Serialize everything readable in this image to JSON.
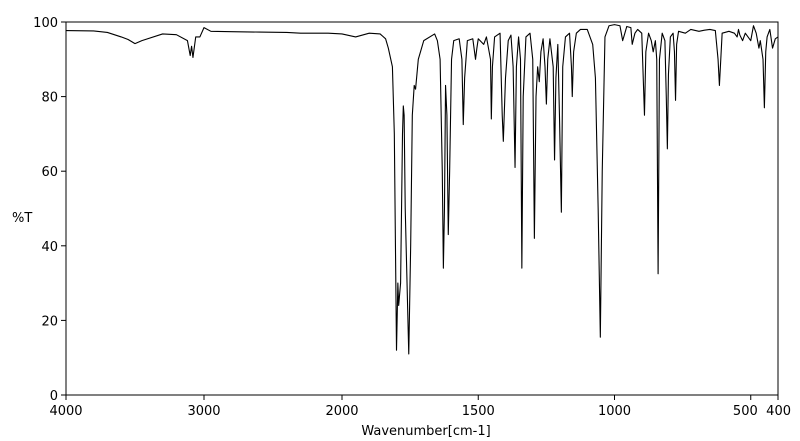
{
  "chart_data": {
    "type": "line",
    "title": "",
    "xlabel": "Wavenumber[cm-1]",
    "ylabel": "%T",
    "xlim": [
      4000,
      400
    ],
    "ylim": [
      0,
      100
    ],
    "x_ticks": [
      4000,
      3000,
      2000,
      1500,
      1000,
      500,
      400
    ],
    "x_tick_labels": [
      "4000",
      "3000",
      "2000",
      "1500",
      "1000",
      "500",
      "400"
    ],
    "y_ticks": [
      0,
      20,
      40,
      60,
      80,
      100
    ],
    "y_tick_labels": [
      "0",
      "20",
      "40",
      "60",
      "80",
      "100"
    ],
    "x_scale": "piecewise-linear (4000-2000 and 2000-400 at different scales)",
    "grid": false,
    "line_color": "#000000",
    "series": [
      {
        "points": [
          [
            4000,
            97.7
          ],
          [
            3800,
            97.6
          ],
          [
            3700,
            97.2
          ],
          [
            3600,
            96.0
          ],
          [
            3550,
            95.3
          ],
          [
            3500,
            94.2
          ],
          [
            3450,
            95.0
          ],
          [
            3300,
            96.8
          ],
          [
            3200,
            96.6
          ],
          [
            3120,
            95.0
          ],
          [
            3100,
            91.0
          ],
          [
            3090,
            93.5
          ],
          [
            3080,
            90.5
          ],
          [
            3060,
            96.0
          ],
          [
            3030,
            96.0
          ],
          [
            3000,
            98.5
          ],
          [
            2950,
            97.5
          ],
          [
            2800,
            97.4
          ],
          [
            2600,
            97.3
          ],
          [
            2400,
            97.2
          ],
          [
            2300,
            97.0
          ],
          [
            2100,
            97.0
          ],
          [
            2000,
            96.8
          ],
          [
            1950,
            96.0
          ],
          [
            1900,
            97.0
          ],
          [
            1860,
            96.8
          ],
          [
            1840,
            95.5
          ],
          [
            1830,
            93.0
          ],
          [
            1815,
            88.0
          ],
          [
            1808,
            70.0
          ],
          [
            1800,
            12.0
          ],
          [
            1795,
            30.0
          ],
          [
            1792,
            24.0
          ],
          [
            1785,
            30.0
          ],
          [
            1778,
            70.0
          ],
          [
            1775,
            77.5
          ],
          [
            1772,
            75.0
          ],
          [
            1768,
            50.0
          ],
          [
            1755,
            11.0
          ],
          [
            1748,
            40.0
          ],
          [
            1742,
            75.0
          ],
          [
            1735,
            83.0
          ],
          [
            1730,
            82.0
          ],
          [
            1720,
            90.0
          ],
          [
            1700,
            95.0
          ],
          [
            1660,
            96.8
          ],
          [
            1650,
            95.0
          ],
          [
            1640,
            90.0
          ],
          [
            1632,
            60.0
          ],
          [
            1628,
            34.0
          ],
          [
            1624,
            50.0
          ],
          [
            1620,
            83.0
          ],
          [
            1615,
            75.0
          ],
          [
            1610,
            43.0
          ],
          [
            1605,
            60.0
          ],
          [
            1598,
            90.0
          ],
          [
            1590,
            95.0
          ],
          [
            1570,
            95.5
          ],
          [
            1560,
            90.0
          ],
          [
            1555,
            72.5
          ],
          [
            1550,
            85.0
          ],
          [
            1540,
            95.0
          ],
          [
            1520,
            95.5
          ],
          [
            1510,
            90.0
          ],
          [
            1505,
            93.0
          ],
          [
            1500,
            95.5
          ],
          [
            1480,
            94.0
          ],
          [
            1470,
            96.0
          ],
          [
            1455,
            90.0
          ],
          [
            1452,
            74.0
          ],
          [
            1448,
            88.0
          ],
          [
            1440,
            96.0
          ],
          [
            1420,
            97.0
          ],
          [
            1412,
            75.0
          ],
          [
            1408,
            68.0
          ],
          [
            1400,
            85.0
          ],
          [
            1390,
            95.0
          ],
          [
            1380,
            96.5
          ],
          [
            1372,
            88.0
          ],
          [
            1365,
            61.0
          ],
          [
            1360,
            88.0
          ],
          [
            1352,
            96.0
          ],
          [
            1345,
            90.0
          ],
          [
            1340,
            34.0
          ],
          [
            1335,
            80.0
          ],
          [
            1325,
            96.0
          ],
          [
            1310,
            97.0
          ],
          [
            1300,
            90.0
          ],
          [
            1294,
            42.0
          ],
          [
            1288,
            80.0
          ],
          [
            1282,
            88.0
          ],
          [
            1276,
            84.0
          ],
          [
            1270,
            92.0
          ],
          [
            1262,
            95.5
          ],
          [
            1255,
            88.0
          ],
          [
            1250,
            78.0
          ],
          [
            1245,
            90.0
          ],
          [
            1237,
            95.5
          ],
          [
            1225,
            88.0
          ],
          [
            1220,
            63.0
          ],
          [
            1215,
            85.0
          ],
          [
            1208,
            94.0
          ],
          [
            1202,
            75.0
          ],
          [
            1195,
            49.0
          ],
          [
            1190,
            88.0
          ],
          [
            1180,
            96.0
          ],
          [
            1165,
            97.0
          ],
          [
            1158,
            88.0
          ],
          [
            1155,
            80.0
          ],
          [
            1150,
            92.0
          ],
          [
            1140,
            97.0
          ],
          [
            1125,
            98.0
          ],
          [
            1100,
            98.0
          ],
          [
            1080,
            94.0
          ],
          [
            1070,
            85.0
          ],
          [
            1060,
            50.0
          ],
          [
            1052,
            15.5
          ],
          [
            1045,
            60.0
          ],
          [
            1035,
            96.0
          ],
          [
            1020,
            99.0
          ],
          [
            1000,
            99.3
          ],
          [
            980,
            99.0
          ],
          [
            970,
            95.0
          ],
          [
            962,
            97.0
          ],
          [
            955,
            98.8
          ],
          [
            940,
            98.5
          ],
          [
            935,
            94.0
          ],
          [
            925,
            97.0
          ],
          [
            915,
            98.0
          ],
          [
            900,
            97.0
          ],
          [
            895,
            86.0
          ],
          [
            890,
            75.0
          ],
          [
            885,
            92.0
          ],
          [
            875,
            97.0
          ],
          [
            865,
            95.0
          ],
          [
            858,
            92.0
          ],
          [
            850,
            95.0
          ],
          [
            845,
            90.0
          ],
          [
            840,
            32.5
          ],
          [
            835,
            90.0
          ],
          [
            825,
            97.0
          ],
          [
            815,
            95.0
          ],
          [
            810,
            80.0
          ],
          [
            806,
            66.0
          ],
          [
            802,
            86.0
          ],
          [
            795,
            96.0
          ],
          [
            785,
            97.0
          ],
          [
            780,
            92.0
          ],
          [
            776,
            79.0
          ],
          [
            772,
            94.0
          ],
          [
            765,
            97.5
          ],
          [
            740,
            97.0
          ],
          [
            720,
            98.0
          ],
          [
            690,
            97.5
          ],
          [
            670,
            97.8
          ],
          [
            650,
            98.0
          ],
          [
            630,
            97.7
          ],
          [
            620,
            90.0
          ],
          [
            615,
            83.0
          ],
          [
            610,
            90.0
          ],
          [
            605,
            97.0
          ],
          [
            580,
            97.5
          ],
          [
            560,
            97.0
          ],
          [
            550,
            96.0
          ],
          [
            545,
            98.0
          ],
          [
            540,
            96.5
          ],
          [
            530,
            95.0
          ],
          [
            520,
            97.0
          ],
          [
            510,
            96.0
          ],
          [
            500,
            95.0
          ],
          [
            490,
            99.0
          ],
          [
            480,
            97.0
          ],
          [
            470,
            93.0
          ],
          [
            465,
            95.0
          ],
          [
            455,
            90.0
          ],
          [
            450,
            77.0
          ],
          [
            445,
            92.0
          ],
          [
            440,
            96.0
          ],
          [
            430,
            98.0
          ],
          [
            420,
            93.0
          ],
          [
            410,
            95.5
          ],
          [
            400,
            96.0
          ]
        ]
      }
    ]
  }
}
